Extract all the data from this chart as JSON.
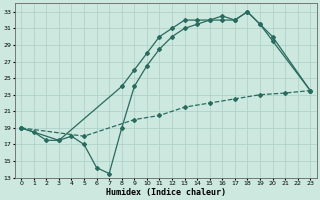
{
  "xlabel": "Humidex (Indice chaleur)",
  "bg_color": "#cce8df",
  "grid_color": "#aacfc5",
  "line_color": "#2a6b5f",
  "xlim": [
    -0.5,
    23.5
  ],
  "ylim": [
    13,
    34
  ],
  "xticks": [
    0,
    1,
    2,
    3,
    4,
    5,
    6,
    7,
    8,
    9,
    10,
    11,
    12,
    13,
    14,
    15,
    16,
    17,
    18,
    19,
    20,
    21,
    22,
    23
  ],
  "yticks": [
    13,
    15,
    17,
    19,
    21,
    23,
    25,
    27,
    29,
    31,
    33
  ],
  "line1_x": [
    0,
    1,
    2,
    3,
    4,
    5,
    6,
    7,
    8,
    9,
    10,
    11,
    12,
    13,
    14,
    15,
    16,
    17,
    18,
    19,
    20,
    23
  ],
  "line1_y": [
    19,
    18.5,
    17.5,
    17.5,
    18,
    17,
    14.2,
    13.5,
    19,
    24,
    26.5,
    28.5,
    30,
    31,
    31.5,
    32,
    32.5,
    32,
    33,
    31.5,
    29.5,
    23.5
  ],
  "line2_x": [
    0,
    3,
    8,
    9,
    10,
    11,
    12,
    13,
    14,
    15,
    16,
    17,
    18,
    19,
    20,
    23
  ],
  "line2_y": [
    19,
    17.5,
    24,
    26,
    28,
    30,
    31,
    32,
    32,
    32,
    32,
    32,
    33,
    31.5,
    30,
    23.5
  ],
  "line3_x": [
    0,
    5,
    9,
    11,
    13,
    15,
    17,
    19,
    21,
    23
  ],
  "line3_y": [
    19,
    18,
    20,
    20.5,
    21.5,
    22,
    22.5,
    23,
    23.2,
    23.5
  ],
  "marker": "D",
  "marker_size": 2.0,
  "linewidth": 0.9
}
